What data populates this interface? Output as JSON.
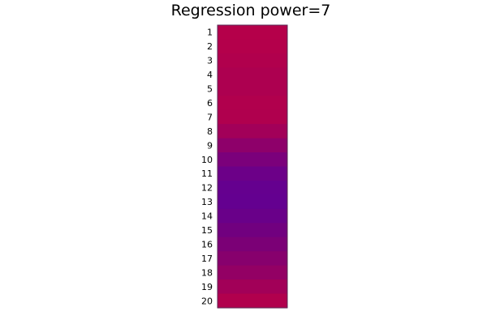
{
  "chart_data": {
    "type": "heatmap",
    "title": "Regression power=7",
    "xlabel": "",
    "ylabel": "",
    "legend": false,
    "grid": false,
    "rows": [
      "1",
      "2",
      "3",
      "4",
      "5",
      "6",
      "7",
      "8",
      "9",
      "10",
      "11",
      "12",
      "13",
      "14",
      "15",
      "16",
      "17",
      "18",
      "19",
      "20"
    ],
    "cell_colors": [
      "#b5004a",
      "#b4004b",
      "#b1004d",
      "#ad0050",
      "#ad0050",
      "#b1004d",
      "#b0004e",
      "#a20059",
      "#8e006a",
      "#7b007b",
      "#6c0088",
      "#65008f",
      "#640090",
      "#690089",
      "#71007f",
      "#7b0076",
      "#87006d",
      "#930064",
      "#a20058",
      "#b1004d"
    ],
    "colors": {
      "frame": "#5a2a55",
      "background": "#ffffff"
    }
  }
}
